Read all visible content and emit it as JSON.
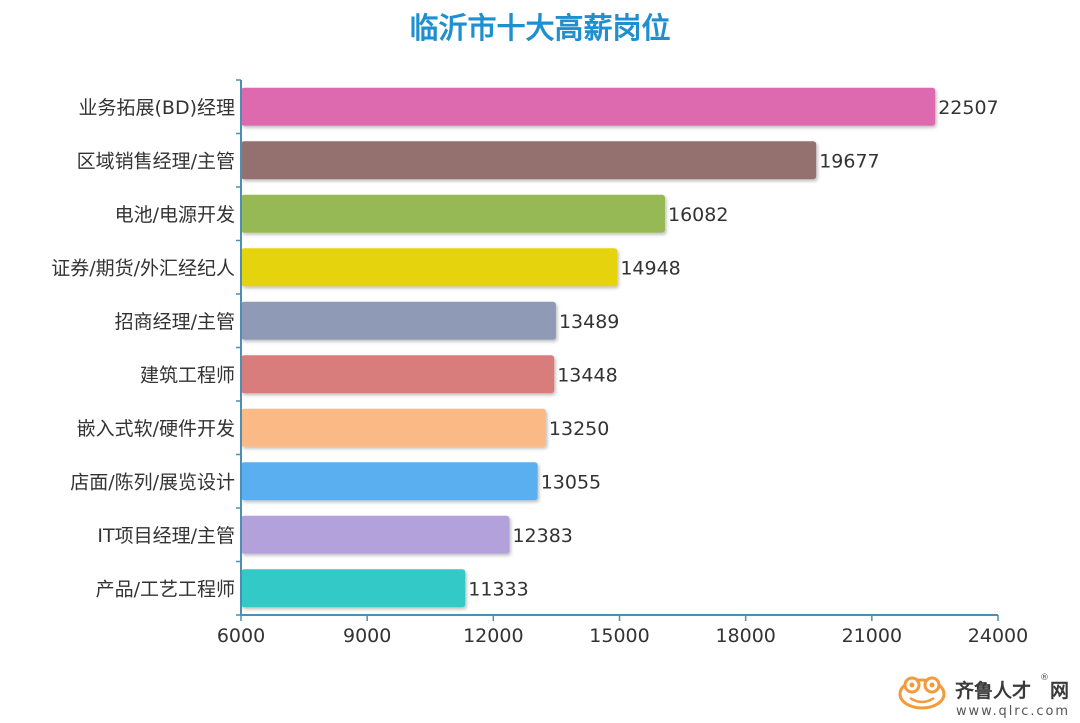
{
  "chart_data": {
    "type": "bar",
    "orientation": "horizontal",
    "title": "临沂市十大高薪岗位",
    "categories": [
      "业务拓展(BD)经理",
      "区域销售经理/主管",
      "电池/电源开发",
      "证券/期货/外汇经纪人",
      "招商经理/主管",
      "建筑工程师",
      "嵌入式软/硬件开发",
      "店面/陈列/展览设计",
      "IT项目经理/主管",
      "产品/工艺工程师"
    ],
    "values": [
      22507,
      19677,
      16082,
      14948,
      13489,
      13448,
      13250,
      13055,
      12383,
      11333
    ],
    "data_labels": [
      "22507",
      "19677",
      "16082",
      "14948",
      "13489",
      "13448",
      "13250",
      "13055",
      "12383",
      "11333"
    ],
    "colors": [
      "#dd6aae",
      "#94706e",
      "#97b955",
      "#e5d30c",
      "#8e9ab6",
      "#d97b7b",
      "#fbb985",
      "#5aaff0",
      "#b3a1dc",
      "#31c9c7"
    ],
    "xlim": [
      6000,
      24000
    ],
    "xticks": [
      "6000",
      "9000",
      "12000",
      "15000",
      "18000",
      "21000",
      "24000"
    ],
    "title_color": "#1e8fd0",
    "axis_color": "#4d8fb3",
    "grid": false,
    "legend": "none"
  },
  "watermark": {
    "brand": "齐鲁人才",
    "suffix": "网",
    "url": "www.qlrc.com",
    "registered": "®",
    "icon": "frog-logo-icon"
  }
}
